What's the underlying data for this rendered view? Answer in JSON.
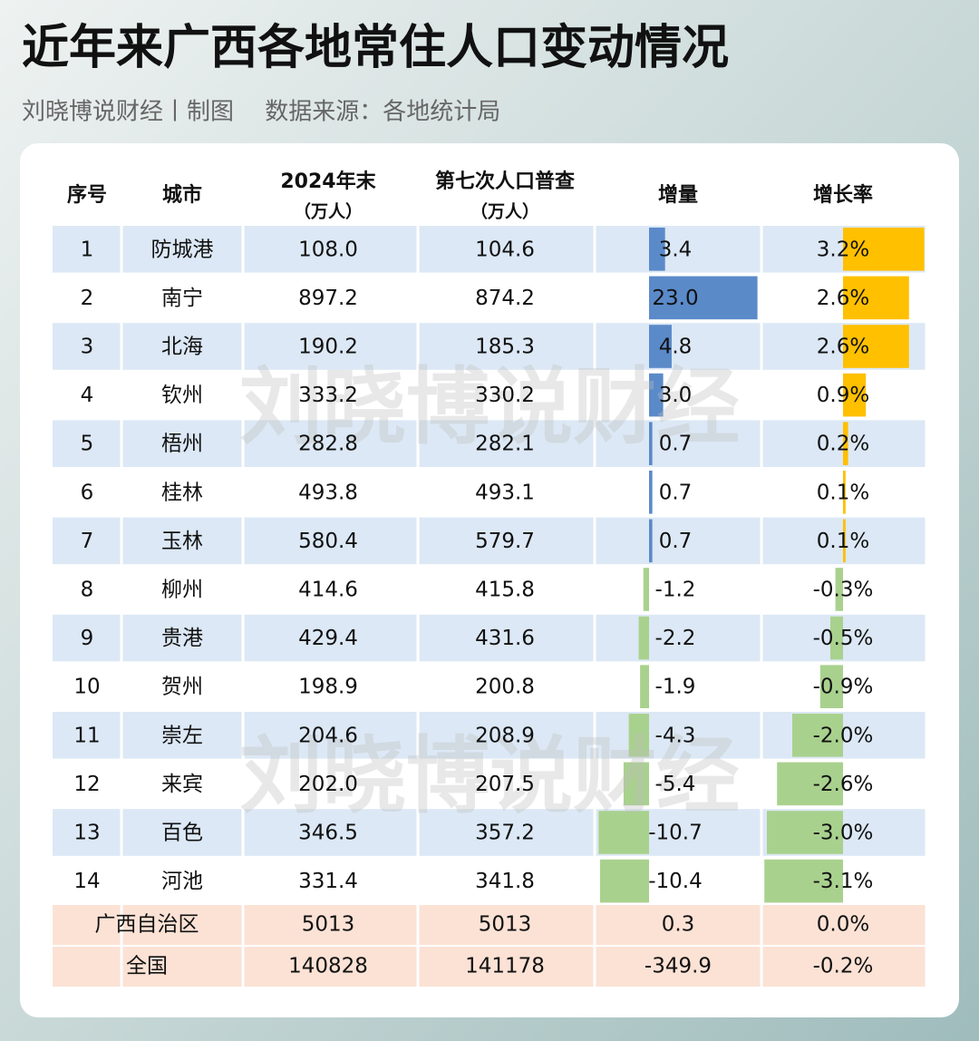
{
  "header": {
    "title": "近年来广西各地常住人口变动情况",
    "subtitle": "刘晓博说财经丨制图　 数据来源：各地统计局"
  },
  "watermark": "刘晓博说财经",
  "table": {
    "columns": [
      [
        "序号"
      ],
      [
        "城市"
      ],
      [
        "2024年末",
        "（万人）"
      ],
      [
        "第七次人口普查",
        "（万人）"
      ],
      [
        "增量"
      ],
      [
        "增长率"
      ]
    ],
    "rows": [
      [
        "1",
        "防城港",
        "108.0",
        "104.6",
        "3.4",
        "3.2%"
      ],
      [
        "2",
        "南宁",
        "897.2",
        "874.2",
        "23.0",
        "2.6%"
      ],
      [
        "3",
        "北海",
        "190.2",
        "185.3",
        "4.8",
        "2.6%"
      ],
      [
        "4",
        "钦州",
        "333.2",
        "330.2",
        "3.0",
        "0.9%"
      ],
      [
        "5",
        "梧州",
        "282.8",
        "282.1",
        "0.7",
        "0.2%"
      ],
      [
        "6",
        "桂林",
        "493.8",
        "493.1",
        "0.7",
        "0.1%"
      ],
      [
        "7",
        "玉林",
        "580.4",
        "579.7",
        "0.7",
        "0.1%"
      ],
      [
        "8",
        "柳州",
        "414.6",
        "415.8",
        "-1.2",
        "-0.3%"
      ],
      [
        "9",
        "贵港",
        "429.4",
        "431.6",
        "-2.2",
        "-0.5%"
      ],
      [
        "10",
        "贺州",
        "198.9",
        "200.8",
        "-1.9",
        "-0.9%"
      ],
      [
        "11",
        "崇左",
        "204.6",
        "208.9",
        "-4.3",
        "-2.0%"
      ],
      [
        "12",
        "来宾",
        "202.0",
        "207.5",
        "-5.4",
        "-2.6%"
      ],
      [
        "13",
        "百色",
        "346.5",
        "357.2",
        "-10.7",
        "-3.0%"
      ],
      [
        "14",
        "河池",
        "331.4",
        "341.8",
        "-10.4",
        "-3.1%"
      ]
    ],
    "summary": [
      [
        "广西自治区",
        "5013",
        "5013",
        "0.3",
        "0.0%"
      ],
      [
        "全国",
        "140828",
        "141178",
        "-349.9",
        "-0.2%"
      ]
    ]
  }
}
